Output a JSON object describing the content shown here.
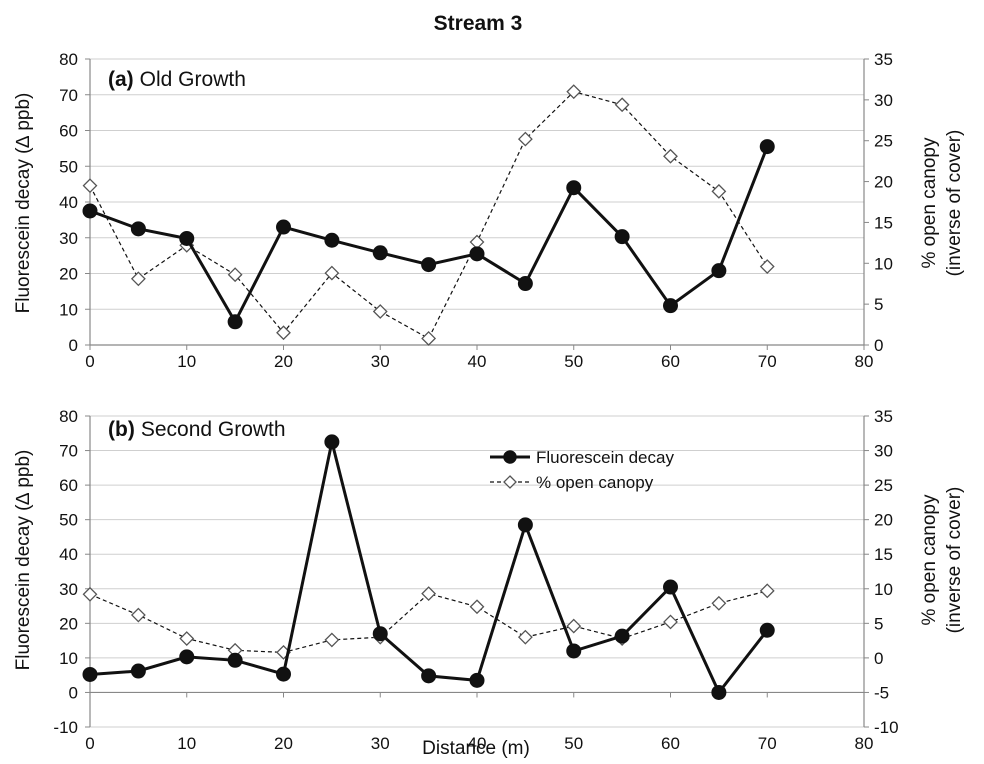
{
  "chart_data": {
    "title": "Stream 3",
    "xlabel": "Distance (m)",
    "legend": {
      "placement": "upper-middle of panel b",
      "entries": [
        "Fluorescein decay",
        "% open canopy"
      ]
    },
    "panels": [
      {
        "type": "line",
        "label_bold": "(a)",
        "label_text": "Old Growth",
        "x": [
          0,
          5,
          10,
          15,
          20,
          25,
          30,
          35,
          40,
          45,
          50,
          55,
          60,
          65,
          70
        ],
        "xlim": [
          0,
          80
        ],
        "xticks": [
          "0",
          "10",
          "20",
          "30",
          "40",
          "50",
          "60",
          "70",
          "80"
        ],
        "ylabel_left": "Fluorescein decay (∆ ppb)",
        "ylabel_right_line1": "% open canopy",
        "ylabel_right_line2": "(inverse of cover)",
        "ylim_left": [
          0,
          80
        ],
        "ylim_right": [
          0,
          35
        ],
        "yticks_left": [
          "0",
          "10",
          "20",
          "30",
          "40",
          "50",
          "60",
          "70",
          "80"
        ],
        "yticks_right": [
          "0",
          "5",
          "10",
          "15",
          "20",
          "25",
          "30",
          "35"
        ],
        "series": [
          {
            "name": "Fluorescein decay",
            "axis": "left",
            "style": "solid-filled-circle",
            "values": [
              37.5,
              32.5,
              29.8,
              6.5,
              33,
              29.3,
              25.8,
              22.5,
              25.5,
              17.2,
              44,
              30.3,
              11,
              20.8,
              55.5
            ]
          },
          {
            "name": "% open canopy",
            "axis": "right",
            "style": "dashed-open-diamond",
            "values": [
              19.5,
              8.1,
              12.2,
              8.6,
              1.5,
              8.8,
              4.1,
              0.8,
              12.6,
              25.2,
              31,
              29.4,
              23.1,
              18.8,
              9.6
            ]
          }
        ]
      },
      {
        "type": "line",
        "label_bold": "(b)",
        "label_text": "Second Growth",
        "x": [
          0,
          5,
          10,
          15,
          20,
          25,
          30,
          35,
          40,
          45,
          50,
          55,
          60,
          65,
          70
        ],
        "xlim": [
          0,
          80
        ],
        "xticks": [
          "0",
          "10",
          "20",
          "30",
          "40",
          "50",
          "60",
          "70",
          "80"
        ],
        "ylabel_left": "Fluorescein decay (∆ ppb)",
        "ylabel_right_line1": "% open canopy",
        "ylabel_right_line2": "(inverse of cover)",
        "ylim_left": [
          -10,
          80
        ],
        "ylim_right": [
          -10,
          35
        ],
        "yticks_left": [
          "-10",
          "0",
          "10",
          "20",
          "30",
          "40",
          "50",
          "60",
          "70",
          "80"
        ],
        "yticks_right": [
          "-10",
          "-5",
          "0",
          "5",
          "10",
          "15",
          "20",
          "25",
          "30",
          "35"
        ],
        "series": [
          {
            "name": "Fluorescein decay",
            "axis": "left",
            "style": "solid-filled-circle",
            "values": [
              5.2,
              6.2,
              10.3,
              9.3,
              5.3,
              72.5,
              17,
              4.8,
              3.5,
              48.5,
              12,
              16.3,
              30.5,
              0,
              18
            ]
          },
          {
            "name": "% open canopy",
            "axis": "right",
            "style": "dashed-open-diamond",
            "values": [
              9.2,
              6.2,
              2.8,
              1.1,
              0.8,
              2.6,
              3,
              9.3,
              7.4,
              3,
              4.6,
              2.8,
              5.2,
              7.9,
              9.7
            ]
          }
        ]
      }
    ]
  }
}
